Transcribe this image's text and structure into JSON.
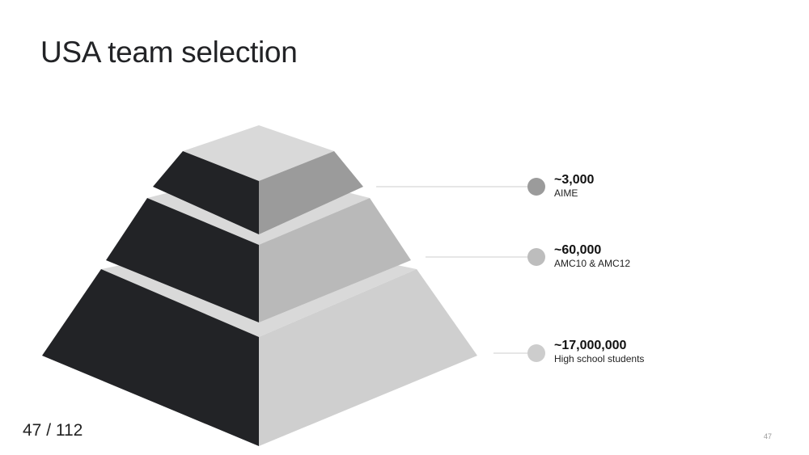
{
  "slide": {
    "title": "USA team selection",
    "page_counter": "47 / 112",
    "slide_number": "47"
  },
  "tiers": [
    {
      "value": "~3,000",
      "label": "AIME",
      "dot_color": "#9b9b9b"
    },
    {
      "value": "~60,000",
      "label": "AMC10 & AMC12",
      "dot_color": "#bdbdbd"
    },
    {
      "value": "~17,000,000",
      "label": "High school students",
      "dot_color": "#cdcdcd"
    }
  ],
  "colors": {
    "dark_face": "#222326",
    "top_face": "#d9d9d9",
    "tier1_right": "#9b9b9b",
    "tier2_right": "#b9b9b9",
    "tier3_right": "#cfcfcf",
    "connector": "#cccccc"
  }
}
